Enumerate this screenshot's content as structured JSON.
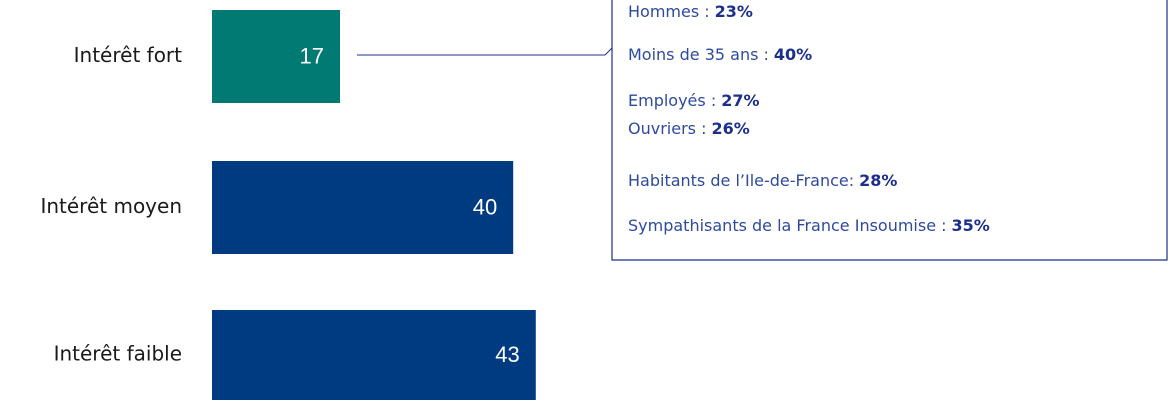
{
  "chart_data": {
    "type": "bar",
    "categories": [
      "Intérêt fort",
      "Intérêt moyen",
      "Intérêt faible"
    ],
    "values": [
      17,
      40,
      43
    ],
    "colors": [
      "#007a73",
      "#003a80",
      "#003a80"
    ],
    "annotation": {
      "items": [
        "Hommes :",
        "Moins de 35 ans :",
        "Employés :",
        "Ouvriers :",
        "Habitants de l’Ile-de-France:",
        "Sympathisants de la France Insoumise :"
      ],
      "values": [
        23,
        40,
        27,
        26,
        28,
        35
      ],
      "value_labels": [
        "23%",
        "40%",
        "27%",
        "26%",
        "28%",
        "35%"
      ]
    }
  }
}
